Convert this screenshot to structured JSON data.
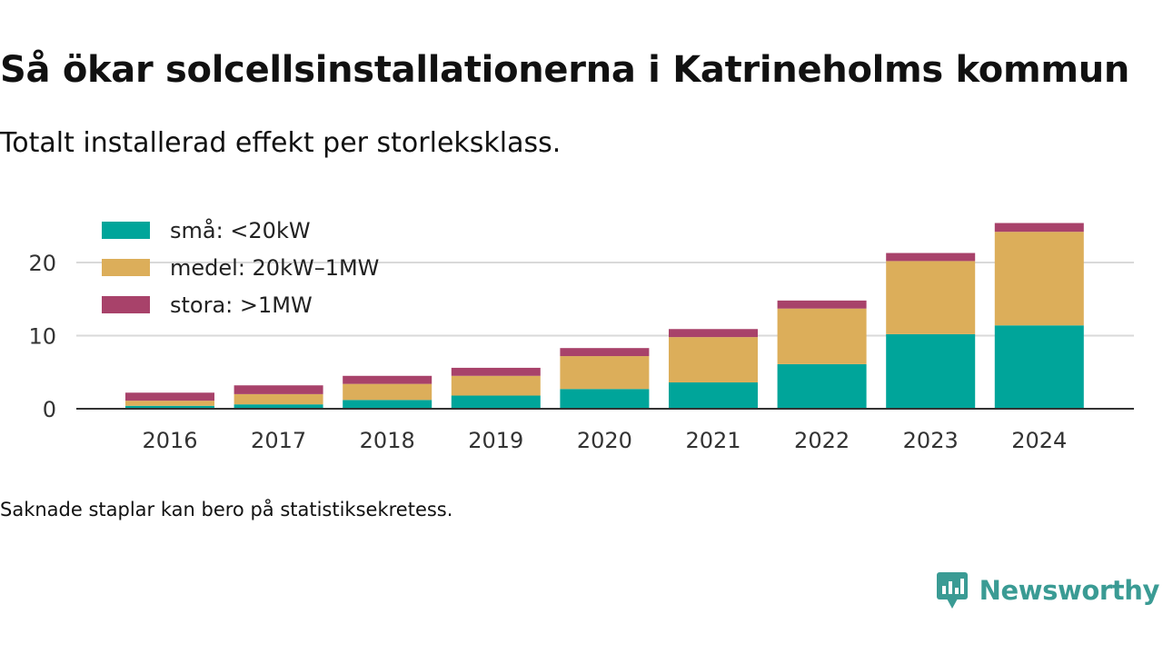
{
  "title": "Så ökar solcellsinstallationerna i Katrineholms kommun",
  "subtitle": "Totalt installerad effekt per storleksklass.",
  "footnote": "Saknade staplar kan bero på statistiksekretess.",
  "brand": {
    "name": "Newsworthy",
    "color": "#3a9b94",
    "icon": "newsworthy-logo-icon"
  },
  "chart_data": {
    "type": "bar",
    "stacked": true,
    "categories": [
      "2016",
      "2017",
      "2018",
      "2019",
      "2020",
      "2021",
      "2022",
      "2023",
      "2024"
    ],
    "series": [
      {
        "name": "små: <20kW",
        "color": "#00a59a",
        "values": [
          0.4,
          0.6,
          1.2,
          1.8,
          2.7,
          3.6,
          6.1,
          10.2,
          11.4
        ]
      },
      {
        "name": "medel: 20kW–1MW",
        "color": "#dcae5a",
        "values": [
          0.7,
          1.4,
          2.2,
          2.7,
          4.5,
          6.2,
          7.6,
          10.0,
          12.8
        ]
      },
      {
        "name": "stora: >1MW",
        "color": "#a8426a",
        "values": [
          1.1,
          1.2,
          1.1,
          1.1,
          1.1,
          1.1,
          1.1,
          1.1,
          1.2
        ]
      }
    ],
    "y_ticks": [
      0,
      10,
      20
    ],
    "ylim": [
      0,
      26
    ],
    "xlabel": "",
    "ylabel": "",
    "grid": true,
    "legend_position": "top-left"
  }
}
